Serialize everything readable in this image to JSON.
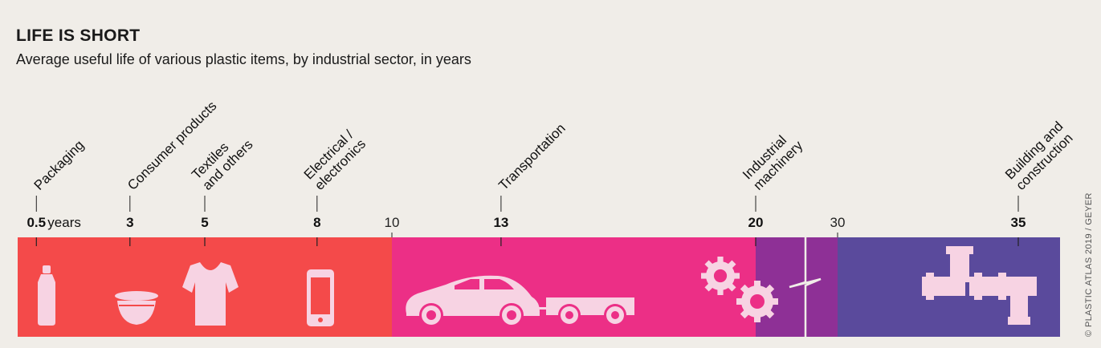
{
  "chart_data": {
    "type": "timeline",
    "title": "LIFE IS SHORT",
    "subtitle": "Average useful life of various plastic items, by industrial sector, in years",
    "unit_label": "years",
    "axis_break": "between 20 and 30",
    "items": [
      {
        "sector": "Packaging",
        "years": 0.5,
        "value_label": "0.5",
        "icon": "bottle-icon"
      },
      {
        "sector": "Consumer products",
        "years": 3,
        "value_label": "3",
        "icon": "bowl-icon"
      },
      {
        "sector": "Textiles and others",
        "years": 5,
        "value_label": "5",
        "icon": "tshirt-icon"
      },
      {
        "sector": "Electrical / electronics",
        "years": 8,
        "value_label": "8",
        "icon": "phone-icon"
      },
      {
        "sector": "Transportation",
        "years": 13,
        "value_label": "13",
        "icon": "car-trailer-icon"
      },
      {
        "sector": "Industrial machinery",
        "years": 20,
        "value_label": "20",
        "icon": "gears-icon"
      },
      {
        "sector": "Building and construction",
        "years": 35,
        "value_label": "35",
        "icon": "pipes-icon"
      }
    ],
    "sector_labels": [
      [
        "Packaging"
      ],
      [
        "Consumer products"
      ],
      [
        "Textiles",
        "and others"
      ],
      [
        "Electrical /",
        "electronics"
      ],
      [
        "Transportation"
      ],
      [
        "Industrial",
        "machinery"
      ],
      [
        "Building and",
        "construction"
      ]
    ],
    "reference_ticks": [
      {
        "years": 10,
        "label": "10"
      },
      {
        "years": 30,
        "label": "30"
      }
    ],
    "bands": [
      {
        "from": 0,
        "to": 10,
        "color": "#f44a4a"
      },
      {
        "from": 10,
        "to": 20,
        "color": "#ec2f86"
      },
      {
        "from": 20,
        "to": 30,
        "color": "#8e3096"
      },
      {
        "from": 30,
        "to": 36.2,
        "color": "#5a4a9c"
      }
    ],
    "icon_color": "#f7d3e3"
  },
  "credit": "© PLASTIC ATLAS 2019 / GEYER"
}
